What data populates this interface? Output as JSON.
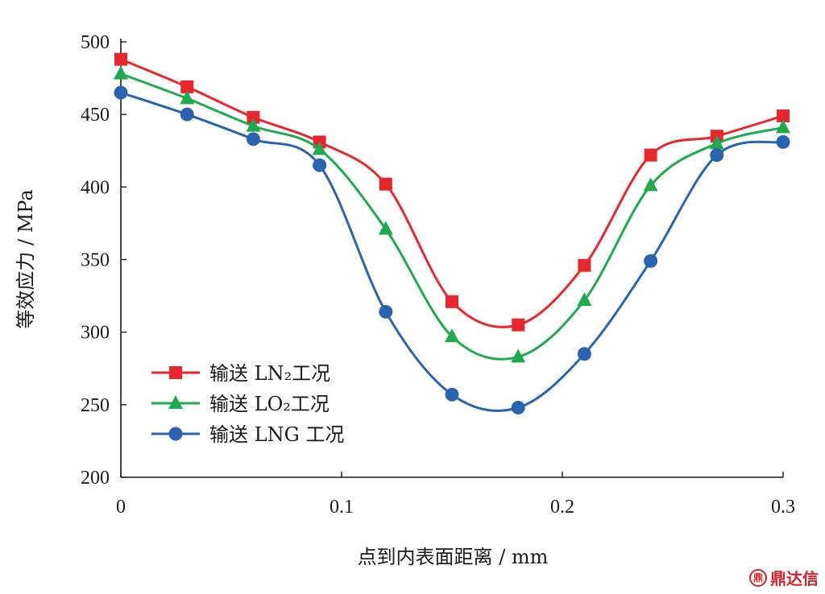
{
  "chart_data": {
    "type": "line",
    "xlabel": "点到内表面距离 / mm",
    "ylabel": "等效应力 / MPa",
    "xlim": [
      0,
      0.3
    ],
    "ylim": [
      200,
      500
    ],
    "x_ticks": [
      0,
      0.1,
      0.2,
      0.3
    ],
    "x_tick_labels": [
      "0",
      "0.1",
      "0.2",
      "0.3"
    ],
    "y_ticks": [
      200,
      250,
      300,
      350,
      400,
      450,
      500
    ],
    "y_tick_labels": [
      "200",
      "250",
      "300",
      "350",
      "400",
      "450",
      "500"
    ],
    "grid": false,
    "legend_position": "bottom-left",
    "x": [
      0,
      0.03,
      0.06,
      0.09,
      0.12,
      0.15,
      0.18,
      0.21,
      0.24,
      0.27,
      0.3
    ],
    "series": [
      {
        "name": "输送 LN₂工况",
        "color": "#e8262d",
        "marker": "square",
        "values": [
          488,
          469,
          448,
          431,
          402,
          321,
          305,
          346,
          422,
          435,
          449
        ]
      },
      {
        "name": "输送 LO₂工况",
        "color": "#1faa4f",
        "marker": "triangle",
        "values": [
          478,
          461,
          442,
          426,
          371,
          297,
          283,
          322,
          401,
          430,
          441
        ]
      },
      {
        "name": "输送 LNG 工况",
        "color": "#2a64b0",
        "marker": "circle",
        "values": [
          465,
          450,
          433,
          415,
          314,
          257,
          248,
          285,
          349,
          422,
          431
        ]
      }
    ]
  },
  "watermark": {
    "logo_text": "鼎",
    "text": "鼎达信"
  }
}
